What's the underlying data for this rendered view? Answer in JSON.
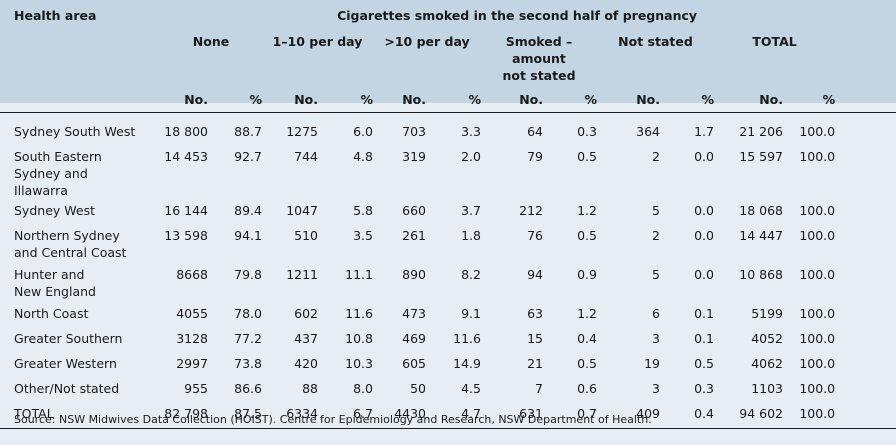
{
  "table": {
    "area_header": "Health area",
    "group_header": "Cigarettes smoked in the second half of pregnancy",
    "categories": [
      {
        "line1": "None",
        "line2": "",
        "line3": ""
      },
      {
        "line1": "1–10 per day",
        "line2": "",
        "line3": ""
      },
      {
        "line1": ">10 per day",
        "line2": "",
        "line3": ""
      },
      {
        "line1": "Smoked –",
        "line2": "amount",
        "line3": "not stated"
      },
      {
        "line1": "Not stated",
        "line2": "",
        "line3": ""
      },
      {
        "line1": "TOTAL",
        "line2": "",
        "line3": ""
      }
    ],
    "sub_headers": [
      "No.",
      "%",
      "No.",
      "%",
      "No.",
      "%",
      "No.",
      "%",
      "No.",
      "%",
      "No.",
      "%"
    ],
    "rows": [
      {
        "area": [
          "Sydney South West"
        ],
        "values": [
          "18 800",
          "88.7",
          "1275",
          "6.0",
          "703",
          "3.3",
          "64",
          "0.3",
          "364",
          "1.7",
          "21 206",
          "100.0"
        ]
      },
      {
        "area": [
          "South Eastern",
          "Sydney and",
          "Illawarra"
        ],
        "values": [
          "14 453",
          "92.7",
          "744",
          "4.8",
          "319",
          "2.0",
          "79",
          "0.5",
          "2",
          "0.0",
          "15 597",
          "100.0"
        ]
      },
      {
        "area": [
          "Sydney West"
        ],
        "values": [
          "16 144",
          "89.4",
          "1047",
          "5.8",
          "660",
          "3.7",
          "212",
          "1.2",
          "5",
          "0.0",
          "18 068",
          "100.0"
        ]
      },
      {
        "area": [
          "Northern Sydney",
          "and Central Coast"
        ],
        "values": [
          "13 598",
          "94.1",
          "510",
          "3.5",
          "261",
          "1.8",
          "76",
          "0.5",
          "2",
          "0.0",
          "14 447",
          "100.0"
        ]
      },
      {
        "area": [
          "Hunter and",
          "New England"
        ],
        "values": [
          "8668",
          "79.8",
          "1211",
          "11.1",
          "890",
          "8.2",
          "94",
          "0.9",
          "5",
          "0.0",
          "10 868",
          "100.0"
        ]
      },
      {
        "area": [
          "North Coast"
        ],
        "values": [
          "4055",
          "78.0",
          "602",
          "11.6",
          "473",
          "9.1",
          "63",
          "1.2",
          "6",
          "0.1",
          "5199",
          "100.0"
        ]
      },
      {
        "area": [
          "Greater Southern"
        ],
        "values": [
          "3128",
          "77.2",
          "437",
          "10.8",
          "469",
          "11.6",
          "15",
          "0.4",
          "3",
          "0.1",
          "4052",
          "100.0"
        ]
      },
      {
        "area": [
          "Greater Western"
        ],
        "values": [
          "2997",
          "73.8",
          "420",
          "10.3",
          "605",
          "14.9",
          "21",
          "0.5",
          "19",
          "0.5",
          "4062",
          "100.0"
        ]
      },
      {
        "area": [
          "Other/Not stated"
        ],
        "values": [
          "955",
          "86.6",
          "88",
          "8.0",
          "50",
          "4.5",
          "7",
          "0.6",
          "3",
          "0.3",
          "1103",
          "100.0"
        ]
      }
    ],
    "total": {
      "area": [
        "TOTAL"
      ],
      "values": [
        "82 798",
        "87.5",
        "6334",
        "6.7",
        "4430",
        "4.7",
        "631",
        "0.7",
        "409",
        "0.4",
        "94 602",
        "100.0"
      ]
    }
  },
  "source": "Source: NSW Midwives Data Collection (HOIST). Centre for Epidemiology and Research, NSW Department of Health.",
  "colors": {
    "header_band": "#c3d5e3",
    "body_background": "#e7eef3",
    "text": "#1a1a1a"
  }
}
